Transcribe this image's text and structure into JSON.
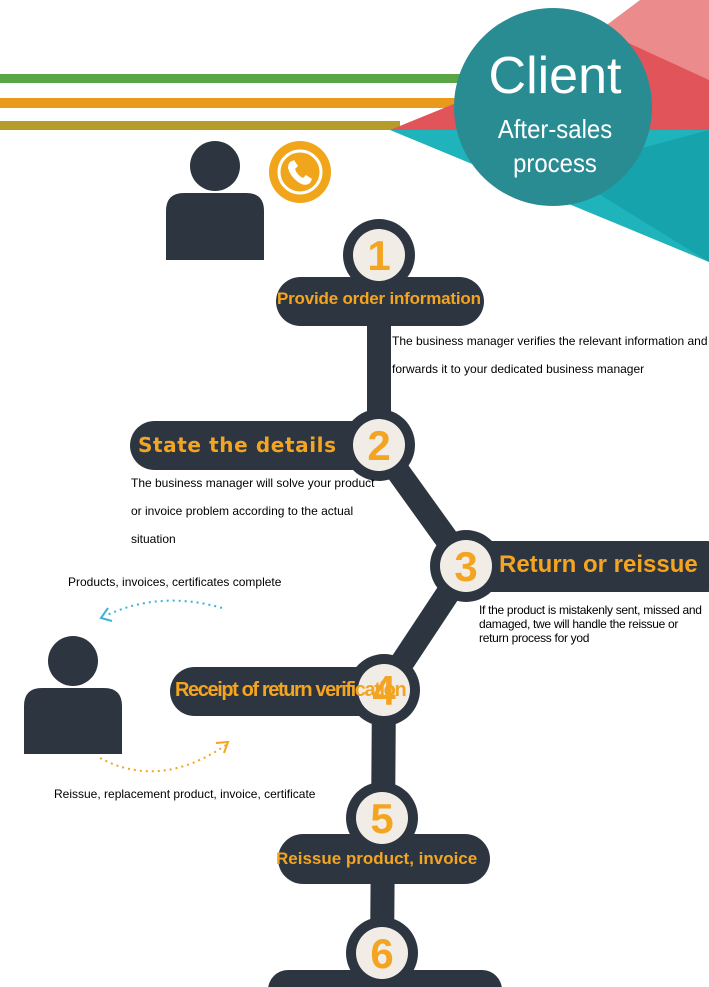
{
  "header": {
    "title": "Client",
    "subtitle": "After-sales process"
  },
  "colors": {
    "dark": "#2d3640",
    "accent_orange": "#f3a421",
    "badge_bg": "#f1ede6",
    "teal": "#1fb3bb",
    "teal_dark": "#2a8c93",
    "coral": "#e0545a",
    "stripe_green": "#5aa545",
    "stripe_orange": "#ea9a1b",
    "stripe_olive": "#b69d29"
  },
  "steps": [
    {
      "number": "1",
      "label": "Provide order information"
    },
    {
      "number": "2",
      "label": "State the details"
    },
    {
      "number": "3",
      "label": "Return or reissue"
    },
    {
      "number": "4",
      "label": "Receipt of return verification"
    },
    {
      "number": "5",
      "label": "Reissue product, invoice"
    },
    {
      "number": "6",
      "label": ""
    }
  ],
  "descriptions": {
    "step1": "The business manager verifies the relevant information and forwards it to your dedicated business manager",
    "step2": "The business manager will solve your product or invoice problem according to the actual situation",
    "step3": "If the product is mistakenly sent, missed and damaged, twe will handle the reissue or return process for yod"
  },
  "cycle": {
    "top": "Products, invoices, certificates complete",
    "bottom": "Reissue, replacement product, invoice, certificate"
  },
  "icons": {
    "person_top": "person-icon",
    "phone": "phone-icon",
    "person_bottom": "person-icon"
  }
}
